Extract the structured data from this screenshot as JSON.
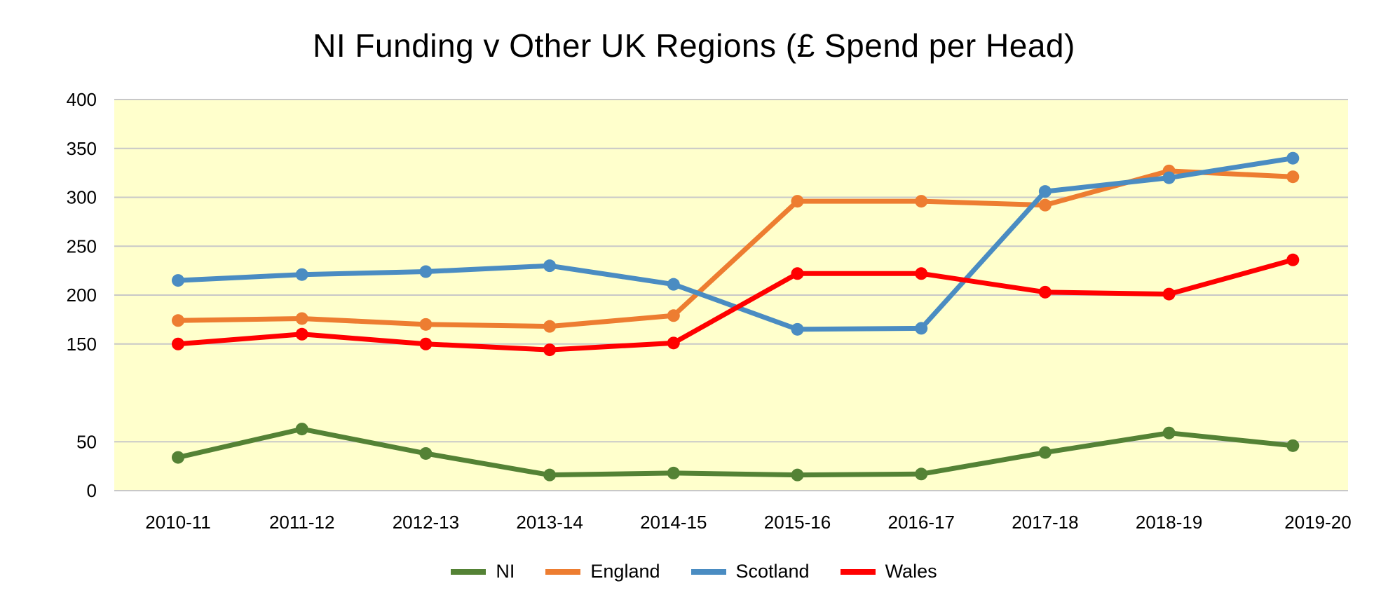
{
  "chart_data": {
    "type": "line",
    "title": "NI Funding v Other UK Regions (£ Spend per Head)",
    "xlabel": "",
    "ylabel": "",
    "categories": [
      "2010-11",
      "2011-12",
      "2012-13",
      "2013-14",
      "2014-15",
      "2015-16",
      "2016-17",
      "2017-18",
      "2018-19",
      "2019-20"
    ],
    "yticks": [
      0,
      50,
      150,
      200,
      250,
      300,
      350,
      400
    ],
    "ylim": [
      0,
      400
    ],
    "grid": true,
    "legend_position": "bottom",
    "plot_background": "#FFFFCC",
    "series": [
      {
        "name": "NI",
        "color": "#548235",
        "values": [
          34,
          63,
          38,
          16,
          18,
          16,
          17,
          39,
          59,
          46
        ]
      },
      {
        "name": "England",
        "color": "#ED7D31",
        "values": [
          174,
          176,
          170,
          168,
          179,
          296,
          296,
          292,
          327,
          321
        ]
      },
      {
        "name": "Scotland",
        "color": "#4A8CC2",
        "values": [
          215,
          221,
          224,
          230,
          211,
          165,
          166,
          306,
          320,
          340
        ]
      },
      {
        "name": "Wales",
        "color": "#FF0000",
        "values": [
          150,
          160,
          150,
          144,
          151,
          222,
          222,
          203,
          201,
          236
        ]
      }
    ]
  }
}
